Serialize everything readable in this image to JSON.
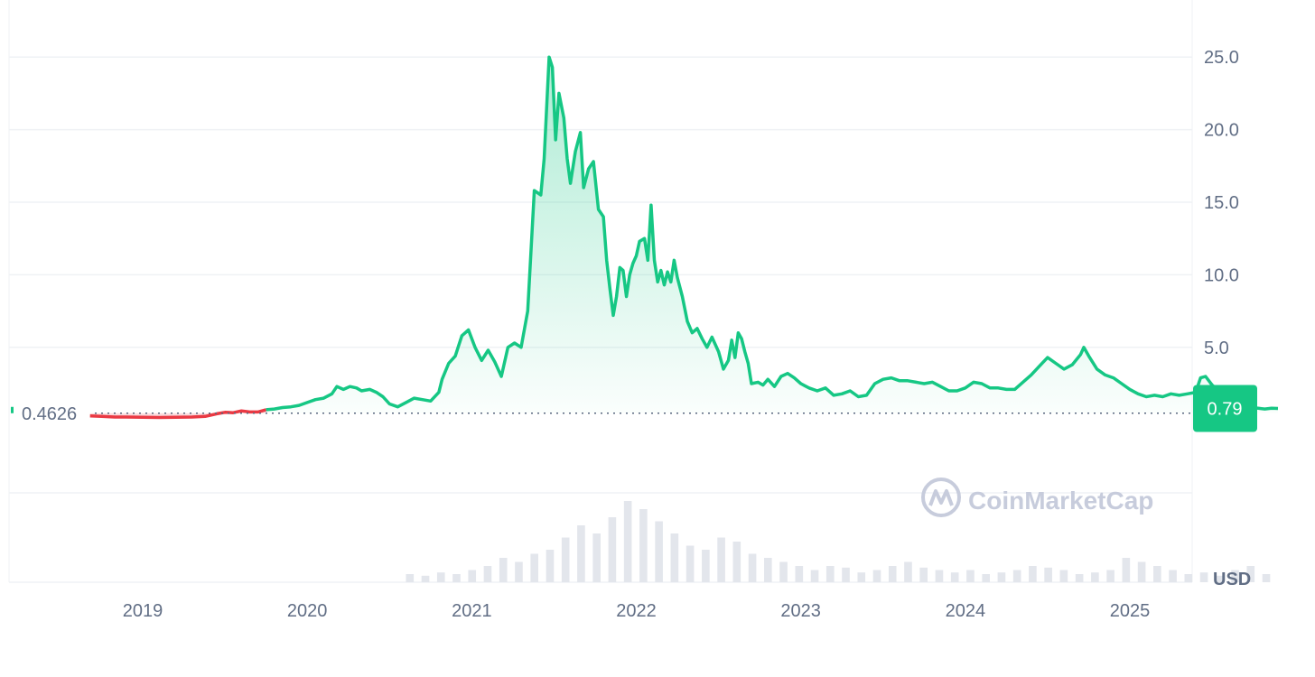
{
  "chart_data": {
    "type": "area",
    "title": "",
    "xlabel": "",
    "ylabel": "",
    "currency_label": "USD",
    "watermark": "CoinMarketCap",
    "y_ticks": [
      {
        "value": 5,
        "label": "5.0"
      },
      {
        "value": 10,
        "label": "10.0"
      },
      {
        "value": 15,
        "label": "15.0"
      },
      {
        "value": 20,
        "label": "20.0"
      },
      {
        "value": 25,
        "label": "25.0"
      }
    ],
    "x_ticks": [
      {
        "value": 2019.0,
        "label": "2019"
      },
      {
        "value": 2020.0,
        "label": "2020"
      },
      {
        "value": 2021.0,
        "label": "2021"
      },
      {
        "value": 2022.0,
        "label": "2022"
      },
      {
        "value": 2023.0,
        "label": "2023"
      },
      {
        "value": 2024.0,
        "label": "2024"
      },
      {
        "value": 2025.0,
        "label": "2025"
      }
    ],
    "ylim": [
      -5,
      28
    ],
    "xlim": [
      2018.35,
      2025.6
    ],
    "baseline": {
      "value": 0.4626,
      "label": "0.4626"
    },
    "current": {
      "value": 0.79,
      "label": "0.79"
    },
    "grid": true,
    "colors": {
      "up": "#16c784",
      "down": "#ea3943",
      "grid": "#eff2f5",
      "text": "#616e85",
      "watermark": "#c7ccdc"
    },
    "price_series": [
      [
        2018.68,
        0.28
      ],
      [
        2018.75,
        0.25
      ],
      [
        2018.83,
        0.2
      ],
      [
        2018.9,
        0.2
      ],
      [
        2019.0,
        0.18
      ],
      [
        2019.1,
        0.17
      ],
      [
        2019.2,
        0.18
      ],
      [
        2019.3,
        0.2
      ],
      [
        2019.38,
        0.24
      ],
      [
        2019.45,
        0.42
      ],
      [
        2019.5,
        0.52
      ],
      [
        2019.55,
        0.5
      ],
      [
        2019.6,
        0.62
      ],
      [
        2019.65,
        0.55
      ],
      [
        2019.7,
        0.55
      ],
      [
        2019.75,
        0.7
      ],
      [
        2019.8,
        0.75
      ],
      [
        2019.85,
        0.85
      ],
      [
        2019.9,
        0.9
      ],
      [
        2019.95,
        1.0
      ],
      [
        2020.0,
        1.2
      ],
      [
        2020.05,
        1.4
      ],
      [
        2020.1,
        1.5
      ],
      [
        2020.15,
        1.8
      ],
      [
        2020.18,
        2.3
      ],
      [
        2020.22,
        2.1
      ],
      [
        2020.26,
        2.3
      ],
      [
        2020.3,
        2.2
      ],
      [
        2020.33,
        2.0
      ],
      [
        2020.38,
        2.1
      ],
      [
        2020.42,
        1.9
      ],
      [
        2020.46,
        1.6
      ],
      [
        2020.5,
        1.1
      ],
      [
        2020.55,
        0.9
      ],
      [
        2020.6,
        1.2
      ],
      [
        2020.65,
        1.5
      ],
      [
        2020.7,
        1.4
      ],
      [
        2020.75,
        1.3
      ],
      [
        2020.8,
        1.9
      ],
      [
        2020.82,
        2.8
      ],
      [
        2020.86,
        3.9
      ],
      [
        2020.9,
        4.4
      ],
      [
        2020.94,
        5.8
      ],
      [
        2020.98,
        6.2
      ],
      [
        2021.02,
        5.0
      ],
      [
        2021.06,
        4.1
      ],
      [
        2021.1,
        4.8
      ],
      [
        2021.14,
        4.0
      ],
      [
        2021.18,
        3.0
      ],
      [
        2021.22,
        5.0
      ],
      [
        2021.26,
        5.3
      ],
      [
        2021.3,
        5.0
      ],
      [
        2021.34,
        7.5
      ],
      [
        2021.38,
        15.8
      ],
      [
        2021.42,
        15.5
      ],
      [
        2021.44,
        18.0
      ],
      [
        2021.47,
        25.0
      ],
      [
        2021.49,
        24.3
      ],
      [
        2021.51,
        19.3
      ],
      [
        2021.53,
        22.5
      ],
      [
        2021.56,
        20.8
      ],
      [
        2021.58,
        18.0
      ],
      [
        2021.6,
        16.3
      ],
      [
        2021.63,
        18.5
      ],
      [
        2021.66,
        19.8
      ],
      [
        2021.68,
        16.0
      ],
      [
        2021.71,
        17.3
      ],
      [
        2021.74,
        17.8
      ],
      [
        2021.77,
        14.5
      ],
      [
        2021.8,
        14.0
      ],
      [
        2021.82,
        11.0
      ],
      [
        2021.84,
        9.0
      ],
      [
        2021.86,
        7.2
      ],
      [
        2021.88,
        8.5
      ],
      [
        2021.9,
        10.5
      ],
      [
        2021.92,
        10.3
      ],
      [
        2021.94,
        8.5
      ],
      [
        2021.96,
        10.0
      ],
      [
        2021.98,
        10.8
      ],
      [
        2022.0,
        11.3
      ],
      [
        2022.02,
        12.3
      ],
      [
        2022.05,
        12.5
      ],
      [
        2022.07,
        11.0
      ],
      [
        2022.09,
        14.8
      ],
      [
        2022.11,
        11.0
      ],
      [
        2022.13,
        9.5
      ],
      [
        2022.15,
        10.3
      ],
      [
        2022.17,
        9.3
      ],
      [
        2022.19,
        10.2
      ],
      [
        2022.21,
        9.5
      ],
      [
        2022.23,
        11.0
      ],
      [
        2022.25,
        9.8
      ],
      [
        2022.28,
        8.5
      ],
      [
        2022.31,
        6.8
      ],
      [
        2022.34,
        6.0
      ],
      [
        2022.37,
        6.3
      ],
      [
        2022.4,
        5.6
      ],
      [
        2022.43,
        5.0
      ],
      [
        2022.46,
        5.7
      ],
      [
        2022.5,
        4.7
      ],
      [
        2022.53,
        3.5
      ],
      [
        2022.56,
        4.1
      ],
      [
        2022.58,
        5.5
      ],
      [
        2022.6,
        4.3
      ],
      [
        2022.62,
        6.0
      ],
      [
        2022.64,
        5.6
      ],
      [
        2022.66,
        4.7
      ],
      [
        2022.68,
        3.9
      ],
      [
        2022.7,
        2.5
      ],
      [
        2022.74,
        2.6
      ],
      [
        2022.77,
        2.4
      ],
      [
        2022.8,
        2.8
      ],
      [
        2022.84,
        2.3
      ],
      [
        2022.88,
        3.0
      ],
      [
        2022.92,
        3.2
      ],
      [
        2022.96,
        2.9
      ],
      [
        2023.0,
        2.5
      ],
      [
        2023.05,
        2.2
      ],
      [
        2023.1,
        2.0
      ],
      [
        2023.15,
        2.2
      ],
      [
        2023.2,
        1.7
      ],
      [
        2023.25,
        1.8
      ],
      [
        2023.3,
        2.0
      ],
      [
        2023.35,
        1.6
      ],
      [
        2023.4,
        1.7
      ],
      [
        2023.45,
        2.5
      ],
      [
        2023.5,
        2.8
      ],
      [
        2023.55,
        2.9
      ],
      [
        2023.6,
        2.7
      ],
      [
        2023.65,
        2.7
      ],
      [
        2023.7,
        2.6
      ],
      [
        2023.75,
        2.5
      ],
      [
        2023.8,
        2.6
      ],
      [
        2023.85,
        2.3
      ],
      [
        2023.9,
        2.0
      ],
      [
        2023.95,
        2.0
      ],
      [
        2024.0,
        2.2
      ],
      [
        2024.05,
        2.6
      ],
      [
        2024.1,
        2.5
      ],
      [
        2024.15,
        2.2
      ],
      [
        2024.2,
        2.2
      ],
      [
        2024.25,
        2.1
      ],
      [
        2024.3,
        2.1
      ],
      [
        2024.35,
        2.6
      ],
      [
        2024.4,
        3.1
      ],
      [
        2024.45,
        3.7
      ],
      [
        2024.5,
        4.3
      ],
      [
        2024.55,
        3.9
      ],
      [
        2024.6,
        3.5
      ],
      [
        2024.65,
        3.8
      ],
      [
        2024.7,
        4.5
      ],
      [
        2024.72,
        5.0
      ],
      [
        2024.75,
        4.4
      ],
      [
        2024.8,
        3.5
      ],
      [
        2024.85,
        3.1
      ],
      [
        2024.9,
        2.9
      ],
      [
        2024.95,
        2.5
      ],
      [
        2025.0,
        2.1
      ],
      [
        2025.05,
        1.8
      ],
      [
        2025.1,
        1.6
      ],
      [
        2025.15,
        1.7
      ],
      [
        2025.2,
        1.6
      ],
      [
        2025.25,
        1.8
      ],
      [
        2025.3,
        1.7
      ],
      [
        2025.35,
        1.8
      ],
      [
        2025.4,
        1.9
      ],
      [
        2025.43,
        2.9
      ],
      [
        2025.46,
        3.0
      ],
      [
        2025.5,
        2.4
      ],
      [
        2025.55,
        1.9
      ],
      [
        2025.58,
        1.5
      ],
      [
        2025.62,
        1.2
      ],
      [
        2025.66,
        1.0
      ],
      [
        2025.7,
        0.9
      ],
      [
        2025.74,
        0.85
      ],
      [
        2025.78,
        0.8
      ],
      [
        2025.82,
        0.75
      ],
      [
        2025.86,
        0.8
      ],
      [
        2025.9,
        0.79
      ]
    ],
    "volume_series": [
      0.1,
      0.08,
      0.12,
      0.1,
      0.15,
      0.2,
      0.3,
      0.25,
      0.35,
      0.4,
      0.55,
      0.7,
      0.6,
      0.8,
      1.0,
      0.9,
      0.75,
      0.6,
      0.45,
      0.4,
      0.55,
      0.5,
      0.35,
      0.3,
      0.25,
      0.2,
      0.15,
      0.2,
      0.18,
      0.12,
      0.15,
      0.2,
      0.25,
      0.18,
      0.15,
      0.12,
      0.15,
      0.1,
      0.12,
      0.15,
      0.2,
      0.18,
      0.15,
      0.1,
      0.12,
      0.15,
      0.3,
      0.25,
      0.2,
      0.15,
      0.1,
      0.12,
      0.08,
      0.15,
      0.2,
      0.1
    ]
  }
}
